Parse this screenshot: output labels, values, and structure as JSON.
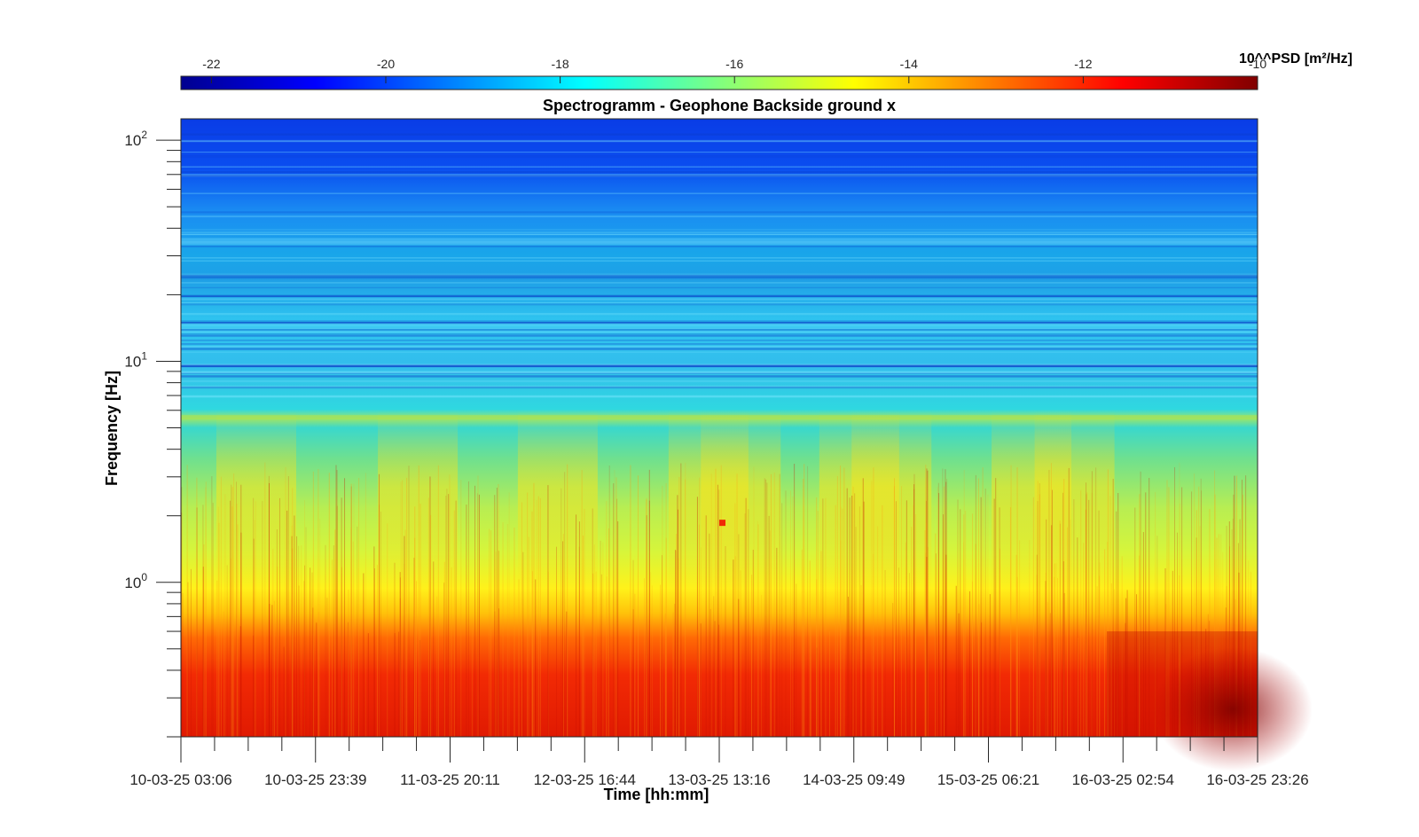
{
  "chart_data": {
    "type": "heatmap",
    "title": "Spectrogramm - Geophone Backside ground x",
    "xlabel": "Time [hh:mm]",
    "ylabel": "Frequency [Hz]",
    "y_scale": "log",
    "ylim": [
      0.2,
      125
    ],
    "y_ticks": [
      {
        "value": 1,
        "base": "10",
        "exp": "0"
      },
      {
        "value": 10,
        "base": "10",
        "exp": "1"
      },
      {
        "value": 100,
        "base": "10",
        "exp": "2"
      }
    ],
    "x_tick_labels": [
      "10-03-25 03:06",
      "10-03-25 23:39",
      "11-03-25 20:11",
      "12-03-25 16:44",
      "13-03-25 13:16",
      "14-03-25 09:49",
      "15-03-25 06:21",
      "16-03-25 02:54",
      "16-03-25 23:26"
    ],
    "x_minor_ticks_per_interval": 4,
    "colormap": "jet",
    "colorbar": {
      "label": "10^^PSD [m²/Hz]",
      "ticks": [
        "-22",
        "-20",
        "-18",
        "-16",
        "-14",
        "-12",
        "-10"
      ],
      "tick_values": [
        -22,
        -20,
        -18,
        -16,
        -14,
        -12,
        -10
      ],
      "range": [
        -22.35,
        -10
      ]
    },
    "psd_profile_log10": [
      {
        "freq_hz": 0.2,
        "value": -11.5
      },
      {
        "freq_hz": 0.4,
        "value": -11.7
      },
      {
        "freq_hz": 0.7,
        "value": -12.5
      },
      {
        "freq_hz": 1.0,
        "value": -14.3
      },
      {
        "freq_hz": 2.0,
        "value": -15.0
      },
      {
        "freq_hz": 4.0,
        "value": -16.0
      },
      {
        "freq_hz": 5.6,
        "value": -15.5
      },
      {
        "freq_hz": 8.0,
        "value": -17.5
      },
      {
        "freq_hz": 20.0,
        "value": -18.3
      },
      {
        "freq_hz": 50.0,
        "value": -19.0
      },
      {
        "freq_hz": 100.0,
        "value": -20.6
      },
      {
        "freq_hz": 125.0,
        "value": -21.0
      }
    ],
    "legend_position": "top"
  }
}
